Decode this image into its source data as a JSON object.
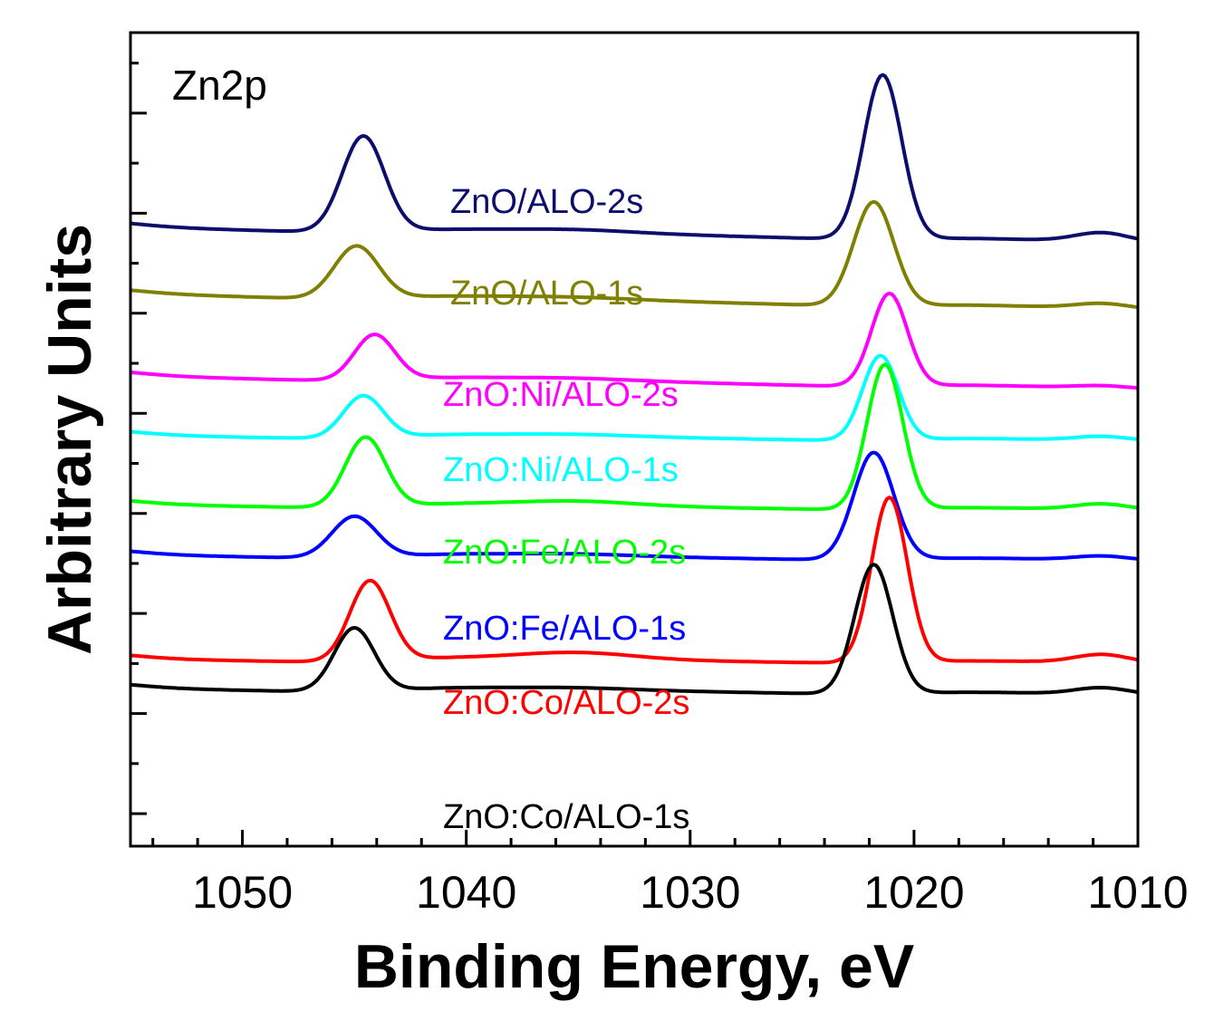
{
  "chart_data": {
    "type": "line",
    "title": "",
    "panel_label": "Zn2p",
    "xlabel": "Binding Energy, eV",
    "ylabel": "Arbitrary Units",
    "xlim": [
      1055,
      1010
    ],
    "ylim": [
      0,
      100
    ],
    "x_ticks": [
      1050,
      1040,
      1030,
      1020,
      1010
    ],
    "x_tick_labels": [
      "1050",
      "1040",
      "1030",
      "1020",
      "1010"
    ],
    "grid": false,
    "legend": "inline-labels",
    "series": [
      {
        "name": "ZnO/ALO-2s",
        "color": "#0d0d6b",
        "baseline": 77.0,
        "slope": 3.4,
        "p1_x": 1044.6,
        "p1_h": 11.8,
        "p1_w": 0.95,
        "p2_x": 1021.4,
        "p2_h": 20.2,
        "p2_w": 0.85,
        "p3_x": 1011.6,
        "p3_h": 1.1,
        "p3_w": 1.2,
        "bump": 0.3
      },
      {
        "name": "ZnO/ALO-1s",
        "color": "#7f7f00",
        "baseline": 68.8,
        "slope": 3.4,
        "p1_x": 1044.9,
        "p1_h": 6.5,
        "p1_w": 1.0,
        "p2_x": 1021.8,
        "p2_h": 12.8,
        "p2_w": 0.9,
        "p3_x": 1011.6,
        "p3_h": 0.6,
        "p3_w": 1.2,
        "bump": 0.2
      },
      {
        "name": "ZnO:Ni/ALO-2s",
        "color": "#ff00ff",
        "baseline": 58.7,
        "slope": 3.1,
        "p1_x": 1044.1,
        "p1_h": 5.6,
        "p1_w": 0.9,
        "p2_x": 1021.1,
        "p2_h": 11.4,
        "p2_w": 0.8,
        "p3_x": 1011.6,
        "p3_h": 0.3,
        "p3_w": 1.2,
        "bump": 0.2
      },
      {
        "name": "ZnO:Ni/ALO-1s",
        "color": "#00ffff",
        "baseline": 51.4,
        "slope": 2.2,
        "p1_x": 1044.6,
        "p1_h": 5.2,
        "p1_w": 0.9,
        "p2_x": 1021.5,
        "p2_h": 10.4,
        "p2_w": 0.8,
        "p3_x": 1011.6,
        "p3_h": 0.5,
        "p3_w": 1.2,
        "bump": 0.2
      },
      {
        "name": "ZnO:Fe/ALO-2s",
        "color": "#00ff00",
        "baseline": 42.9,
        "slope": 2.2,
        "p1_x": 1044.5,
        "p1_h": 8.6,
        "p1_w": 0.9,
        "p2_x": 1021.3,
        "p2_h": 17.8,
        "p2_w": 0.8,
        "p3_x": 1011.6,
        "p3_h": 0.7,
        "p3_w": 1.2,
        "bump": 0.5
      },
      {
        "name": "ZnO:Fe/ALO-1s",
        "color": "#0000ff",
        "baseline": 36.7,
        "slope": 2.2,
        "p1_x": 1045.0,
        "p1_h": 5.1,
        "p1_w": 1.0,
        "p2_x": 1021.8,
        "p2_h": 13.2,
        "p2_w": 0.9,
        "p3_x": 1011.6,
        "p3_h": 0.5,
        "p3_w": 1.2,
        "bump": 0.2
      },
      {
        "name": "ZnO:Co/ALO-2s",
        "color": "#ff0000",
        "baseline": 23.9,
        "slope": 2.0,
        "p1_x": 1044.3,
        "p1_h": 9.9,
        "p1_w": 0.9,
        "p2_x": 1021.1,
        "p2_h": 20.3,
        "p2_w": 0.8,
        "p3_x": 1011.6,
        "p3_h": 1.0,
        "p3_w": 1.2,
        "bump": 0.8
      },
      {
        "name": "ZnO:Co/ALO-1s",
        "color": "#000000",
        "baseline": 20.3,
        "slope": 2.3,
        "p1_x": 1045.0,
        "p1_h": 7.8,
        "p1_w": 0.9,
        "p2_x": 1021.8,
        "p2_h": 15.9,
        "p2_w": 0.85,
        "p3_x": 1011.6,
        "p3_h": 0.8,
        "p3_w": 1.2,
        "bump": 0.2
      }
    ]
  }
}
